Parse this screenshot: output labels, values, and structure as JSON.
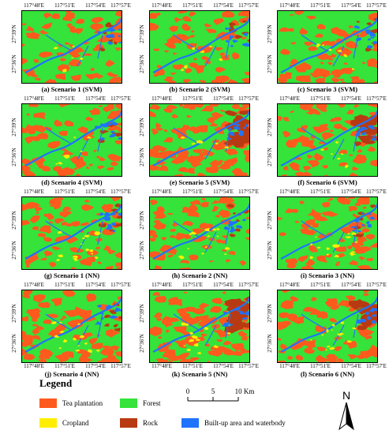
{
  "figure": {
    "longitude_ticks": [
      "117°48′E",
      "117°51′E",
      "117°54′E",
      "117°57′E"
    ],
    "latitude_ticks": [
      "27°39′N",
      "27°36′N"
    ],
    "panels": [
      {
        "caption": "(a) Scenario 1 (SVM)"
      },
      {
        "caption": "(b) Scenario 2 (SVM)"
      },
      {
        "caption": "(c) Scenario 3 (SVM)"
      },
      {
        "caption": "(d) Scenario 4 (SVM)"
      },
      {
        "caption": "(e) Scenario 5 (SVM)"
      },
      {
        "caption": "(f) Scenario 6 (SVM)"
      },
      {
        "caption": "(g) Scenario 1 (NN)"
      },
      {
        "caption": "(h) Scenario 2 (NN)"
      },
      {
        "caption": "(i) Scenario 3 (NN)"
      },
      {
        "caption": "(j) Scenario 4 (NN)"
      },
      {
        "caption": "(k) Scenario 5 (NN)"
      },
      {
        "caption": "(l) Scenario 6 (NN)"
      }
    ]
  },
  "legend": {
    "title": "Legend",
    "items": [
      {
        "label": "Tea plantation",
        "color": "#ff5a1e"
      },
      {
        "label": "Forest",
        "color": "#35e33a"
      },
      {
        "label": "Cropland",
        "color": "#ffee00"
      },
      {
        "label": "Rock",
        "color": "#b83a12"
      },
      {
        "label": "Built-up area and waterbody",
        "color": "#1f73ff"
      }
    ]
  },
  "scale_bar": {
    "labels": [
      "0",
      "5",
      "10 Km"
    ]
  },
  "north_arrow": {
    "label": "N"
  }
}
